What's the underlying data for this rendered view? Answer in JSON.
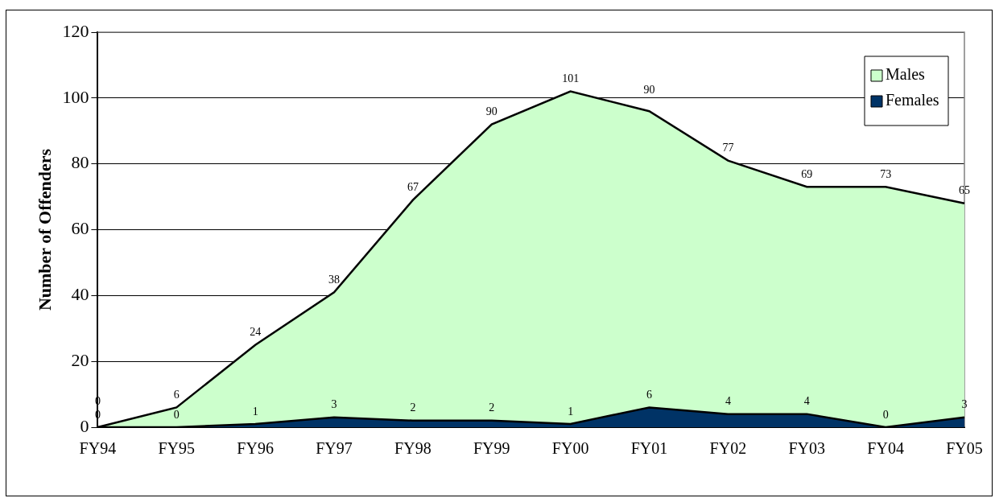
{
  "chart_data": {
    "type": "area",
    "stacked": true,
    "ylabel": "Number of Offenders",
    "categories": [
      "FY94",
      "FY95",
      "FY96",
      "FY97",
      "FY98",
      "FY99",
      "FY00",
      "FY01",
      "FY02",
      "FY03",
      "FY04",
      "FY05"
    ],
    "series": [
      {
        "name": "Females",
        "color": "#003366",
        "values": [
          0,
          0,
          1,
          3,
          2,
          2,
          1,
          6,
          4,
          4,
          0,
          3
        ]
      },
      {
        "name": "Males",
        "color": "#ccffcc",
        "values": [
          0,
          6,
          24,
          38,
          67,
          90,
          101,
          90,
          77,
          69,
          73,
          65
        ]
      }
    ],
    "ylim": [
      0,
      120
    ],
    "yticks": [
      0,
      20,
      40,
      60,
      80,
      100,
      120
    ],
    "grid": "y",
    "legend": "top right",
    "data_labels": true
  }
}
